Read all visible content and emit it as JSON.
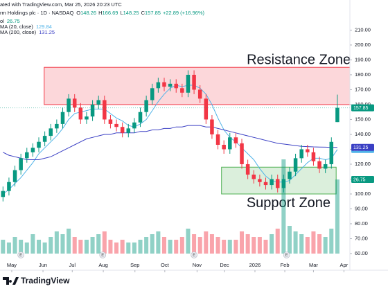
{
  "chart_data": {
    "type": "candlestick",
    "header": {
      "created": "ated with TradingView.com, Mar 25, 2026 20:23 UTC",
      "symbol": "rm Holdings plc · 1D · NASDAQ",
      "change": "+22.89 (+16.96%)"
    },
    "ohlc_prefixes": [
      "O",
      "H",
      "L",
      "C"
    ],
    "volume_label": "ol",
    "footer": "TradingView",
    "up_color": "#089981",
    "down_color": "#f23645",
    "xlim": [
      -0.5,
      58.1
    ],
    "xticks": [
      {
        "value": 1.47,
        "label": "May"
      },
      {
        "value": 6.7,
        "label": "Jun"
      },
      {
        "value": 11.6,
        "label": "Jul"
      },
      {
        "value": 16.8,
        "label": "Aug"
      },
      {
        "value": 22.1,
        "label": "Sep"
      },
      {
        "value": 27.1,
        "label": "Oct"
      },
      {
        "value": 32.5,
        "label": "Nov"
      },
      {
        "value": 37.1,
        "label": "Dec"
      },
      {
        "value": 42.2,
        "label": "2026"
      },
      {
        "value": 47.2,
        "label": "Feb"
      },
      {
        "value": 52,
        "label": "Mar"
      },
      {
        "value": 57.1,
        "label": "Apr"
      }
    ],
    "ylim": [
      57.2,
      230.2
    ],
    "yticks": [
      {
        "value": 60,
        "label": "60.00"
      },
      {
        "value": 70,
        "label": "70.00"
      },
      {
        "value": 80,
        "label": "80.00"
      },
      {
        "value": 90,
        "label": "90.00"
      },
      {
        "value": 100,
        "label": "100.00"
      },
      {
        "value": 110,
        "label": "110.00"
      },
      {
        "value": 120,
        "label": "120.00"
      },
      {
        "value": 130,
        "label": "130.00"
      },
      {
        "value": 140,
        "label": "140.00"
      },
      {
        "value": 150,
        "label": "150.00"
      },
      {
        "value": 160,
        "label": "160.00"
      },
      {
        "value": 170,
        "label": "170.00"
      },
      {
        "value": 180,
        "label": "180.00"
      },
      {
        "value": 190,
        "label": "190.00"
      },
      {
        "value": 200,
        "label": "200.00"
      },
      {
        "value": 210,
        "label": "210.00"
      }
    ],
    "open": [
      98,
      102,
      108,
      116,
      124,
      128,
      131,
      135,
      139,
      144,
      147,
      155,
      164,
      158,
      150,
      152,
      160,
      163,
      150,
      147,
      145,
      141,
      144,
      148,
      155,
      163,
      171,
      175,
      172,
      174,
      171,
      168,
      180,
      170,
      164,
      150,
      140,
      133,
      130,
      138,
      134,
      120,
      113,
      110,
      108,
      106,
      110,
      104,
      110,
      115,
      124,
      130,
      128,
      122,
      117,
      120,
      148.26
    ],
    "high": [
      105,
      111,
      119,
      127,
      131,
      134,
      138,
      142,
      147,
      150,
      158,
      167,
      167,
      161,
      155,
      163,
      166,
      166,
      153,
      150,
      148,
      147,
      151,
      158,
      166,
      174,
      178,
      178,
      177,
      177,
      174,
      183,
      183,
      173,
      167,
      153,
      143,
      136,
      141,
      141,
      137,
      123,
      116,
      113,
      111,
      113,
      113,
      113,
      118,
      127,
      133,
      133,
      131,
      125,
      123,
      138,
      166.69
    ],
    "low": [
      95,
      99,
      105,
      113,
      121,
      125,
      128,
      132,
      136,
      141,
      144,
      152,
      155,
      147,
      147,
      149,
      157,
      147,
      144,
      142,
      138,
      138,
      141,
      145,
      152,
      160,
      168,
      169,
      169,
      168,
      165,
      165,
      167,
      161,
      147,
      137,
      130,
      127,
      127,
      131,
      117,
      110,
      107,
      105,
      103,
      103,
      101,
      101,
      107,
      112,
      121,
      125,
      119,
      114,
      114,
      117,
      148.25
    ],
    "close": [
      102,
      108,
      116,
      124,
      128,
      131,
      135,
      139,
      144,
      147,
      155,
      164,
      158,
      150,
      152,
      160,
      163,
      150,
      147,
      145,
      141,
      144,
      148,
      155,
      163,
      171,
      175,
      172,
      174,
      171,
      168,
      180,
      170,
      164,
      150,
      140,
      133,
      130,
      138,
      134,
      120,
      113,
      110,
      108,
      106,
      110,
      104,
      110,
      115,
      124,
      130,
      128,
      122,
      117,
      120,
      134.96,
      157.85
    ],
    "volume": [
      5,
      4,
      6,
      5,
      4,
      7,
      5,
      4,
      6,
      8,
      7,
      9,
      6,
      5,
      5,
      6,
      7,
      8,
      5,
      4,
      5,
      4,
      4,
      5,
      6,
      7,
      8,
      6,
      5,
      5,
      6,
      9,
      7,
      6,
      8,
      7,
      6,
      5,
      5,
      5,
      8,
      7,
      6,
      6,
      5,
      7,
      9,
      34,
      10,
      8,
      7,
      6,
      8,
      7,
      6,
      9,
      26.75
    ],
    "series": [
      {
        "name": "MA (20, close)",
        "color": "#4fb3e8",
        "values": [
          100,
          103,
          107,
          111,
          116,
          121,
          127,
          131,
          135,
          139,
          144,
          150,
          154,
          155,
          156,
          157,
          157,
          157,
          154,
          151,
          149,
          146,
          145,
          147,
          150,
          156,
          162,
          167,
          171,
          173,
          172,
          173,
          173,
          171,
          167,
          160,
          151,
          143,
          138,
          135,
          131,
          127,
          123,
          117,
          112,
          109,
          108,
          108,
          109,
          113,
          117,
          121,
          124,
          124,
          123,
          124,
          129.84
        ]
      },
      {
        "name": "MA (200, close)",
        "color": "#3a3fc4",
        "values": [
          128,
          126,
          125,
          124,
          123,
          123,
          123,
          124,
          125,
          127,
          129,
          131,
          133,
          135,
          137,
          138,
          139,
          140,
          140,
          141,
          141,
          141,
          141,
          142,
          142,
          143,
          143,
          144,
          144,
          145,
          145,
          146,
          146,
          146,
          145,
          145,
          144,
          143,
          142,
          141,
          140,
          139,
          138,
          137,
          136,
          135,
          134,
          133.5,
          133,
          132.5,
          132,
          131.8,
          131.6,
          131.5,
          131.4,
          131.3,
          131.25
        ]
      }
    ],
    "zones": [
      {
        "label": "Resistance Zone",
        "x": [
          6.9,
          58.7
        ],
        "y": [
          160,
          185
        ],
        "color": "#f23645"
      },
      {
        "label": "Support Zone",
        "x": [
          36.6,
          55.8
        ],
        "y": [
          100,
          118
        ],
        "color": "#4caf50"
      }
    ],
    "earnings_markers": [
      {
        "x": 3,
        "label": "E"
      },
      {
        "x": 16.7,
        "label": "E"
      },
      {
        "x": 32,
        "label": "E"
      },
      {
        "x": 47.5,
        "label": "E"
      }
    ]
  }
}
